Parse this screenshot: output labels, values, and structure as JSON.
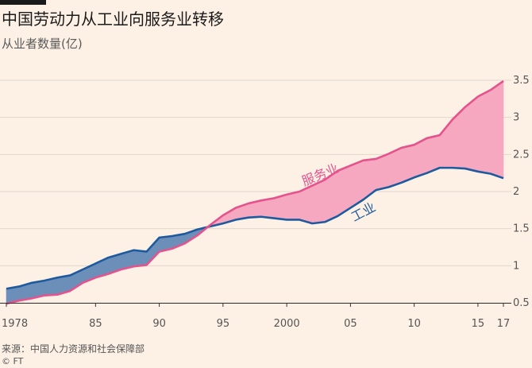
{
  "title": "中国劳动力从工业向服务业转移",
  "subtitle": "从业者数量(亿)",
  "source": "来源：中国人力资源和社会保障部",
  "credit": "© FT",
  "colors": {
    "background": "#fdf1e6",
    "industry_line": "#1d5a9e",
    "industry_fill": "#6b8fb8",
    "services_line": "#e5528c",
    "services_fill": "#f5a8c0",
    "grid": "#e0d7cc"
  },
  "chart_data": {
    "type": "area",
    "x": [
      1978,
      1979,
      1980,
      1981,
      1982,
      1983,
      1984,
      1985,
      1986,
      1987,
      1988,
      1989,
      1990,
      1991,
      1992,
      1993,
      1994,
      1995,
      1996,
      1997,
      1998,
      1999,
      2000,
      2001,
      2002,
      2003,
      2004,
      2005,
      2006,
      2007,
      2008,
      2009,
      2010,
      2011,
      2012,
      2013,
      2014,
      2015,
      2016,
      2017
    ],
    "x_tick_values": [
      1978,
      1985,
      1990,
      1995,
      2000,
      2005,
      2010,
      2015,
      2017
    ],
    "x_tick_labels": [
      "1978",
      "85",
      "90",
      "95",
      "2000",
      "05",
      "10",
      "15",
      "17"
    ],
    "y_ticks": [
      0.5,
      1,
      1.5,
      2,
      2.5,
      3,
      3.5
    ],
    "y_tick_labels": [
      "0.5",
      "1",
      "1.5",
      "2",
      "2.5",
      "3",
      "3.5"
    ],
    "ylim": [
      0.5,
      3.5
    ],
    "grid": true,
    "series": [
      {
        "name": "工业",
        "values": [
          0.69,
          0.72,
          0.77,
          0.8,
          0.84,
          0.87,
          0.95,
          1.03,
          1.11,
          1.16,
          1.21,
          1.19,
          1.38,
          1.4,
          1.43,
          1.49,
          1.53,
          1.57,
          1.62,
          1.65,
          1.66,
          1.64,
          1.62,
          1.62,
          1.57,
          1.59,
          1.67,
          1.78,
          1.89,
          2.02,
          2.06,
          2.12,
          2.19,
          2.25,
          2.32,
          2.32,
          2.31,
          2.27,
          2.24,
          2.18
        ]
      },
      {
        "name": "服务业",
        "values": [
          0.49,
          0.53,
          0.56,
          0.6,
          0.61,
          0.66,
          0.77,
          0.84,
          0.89,
          0.95,
          0.99,
          1.01,
          1.19,
          1.23,
          1.3,
          1.41,
          1.55,
          1.68,
          1.78,
          1.84,
          1.88,
          1.91,
          1.96,
          2.0,
          2.08,
          2.16,
          2.28,
          2.35,
          2.42,
          2.44,
          2.51,
          2.59,
          2.63,
          2.72,
          2.76,
          2.97,
          3.14,
          3.28,
          3.37,
          3.49
        ]
      }
    ]
  }
}
